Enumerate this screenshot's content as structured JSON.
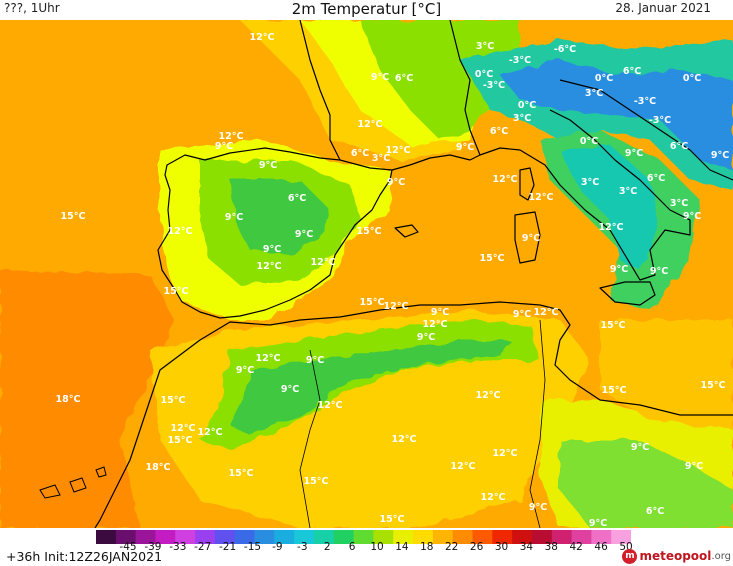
{
  "header": {
    "left": "???, 1Uhr",
    "title": "2m Temperatur [°C]",
    "date": "28. Januar 2021"
  },
  "colors": {
    "sea_warm": "#ff8c00",
    "sea_mild": "#ffaa00",
    "land_mild": "#ffd000",
    "land_cool": "#f0ff00",
    "cold": "#8ce000",
    "very_cold": "#40c840",
    "coast": "#000000"
  },
  "temperature_labels": [
    {
      "text": "12°C",
      "lx": 262,
      "ly": 36
    },
    {
      "text": "9°C",
      "lx": 380,
      "ly": 76
    },
    {
      "text": "6°C",
      "lx": 404,
      "ly": 77
    },
    {
      "text": "3°C",
      "lx": 485,
      "ly": 45
    },
    {
      "text": "-6°C",
      "lx": 565,
      "ly": 48
    },
    {
      "text": "0°C",
      "lx": 484,
      "ly": 73
    },
    {
      "text": "-3°C",
      "lx": 520,
      "ly": 59
    },
    {
      "text": "-3°C",
      "lx": 494,
      "ly": 84
    },
    {
      "text": "0°C",
      "lx": 604,
      "ly": 77
    },
    {
      "text": "6°C",
      "lx": 632,
      "ly": 70
    },
    {
      "text": "0°C",
      "lx": 692,
      "ly": 77
    },
    {
      "text": "3°C",
      "lx": 594,
      "ly": 92
    },
    {
      "text": "-3°C",
      "lx": 645,
      "ly": 100
    },
    {
      "text": "0°C",
      "lx": 527,
      "ly": 104
    },
    {
      "text": "3°C",
      "lx": 522,
      "ly": 117
    },
    {
      "text": "-3°C",
      "lx": 660,
      "ly": 119
    },
    {
      "text": "6°C",
      "lx": 499,
      "ly": 130
    },
    {
      "text": "0°C",
      "lx": 589,
      "ly": 140
    },
    {
      "text": "6°C",
      "lx": 679,
      "ly": 145
    },
    {
      "text": "9°C",
      "lx": 720,
      "ly": 154
    },
    {
      "text": "12°C",
      "lx": 370,
      "ly": 123
    },
    {
      "text": "12°C",
      "lx": 231,
      "ly": 135
    },
    {
      "text": "9°C",
      "lx": 224,
      "ly": 145
    },
    {
      "text": "9°C",
      "lx": 268,
      "ly": 164
    },
    {
      "text": "6°C",
      "lx": 360,
      "ly": 152
    },
    {
      "text": "3°C",
      "lx": 381,
      "ly": 157
    },
    {
      "text": "12°C",
      "lx": 398,
      "ly": 149
    },
    {
      "text": "9°C",
      "lx": 465,
      "ly": 146
    },
    {
      "text": "9°C",
      "lx": 634,
      "ly": 152
    },
    {
      "text": "6°C",
      "lx": 656,
      "ly": 177
    },
    {
      "text": "12°C",
      "lx": 505,
      "ly": 178
    },
    {
      "text": "9°C",
      "lx": 396,
      "ly": 181
    },
    {
      "text": "3°C",
      "lx": 590,
      "ly": 181
    },
    {
      "text": "3°C",
      "lx": 628,
      "ly": 190
    },
    {
      "text": "6°C",
      "lx": 297,
      "ly": 197
    },
    {
      "text": "12°C",
      "lx": 541,
      "ly": 196
    },
    {
      "text": "3°C",
      "lx": 679,
      "ly": 202
    },
    {
      "text": "9°C",
      "lx": 692,
      "ly": 215
    },
    {
      "text": "15°C",
      "lx": 73,
      "ly": 215
    },
    {
      "text": "9°C",
      "lx": 234,
      "ly": 216
    },
    {
      "text": "9°C",
      "lx": 304,
      "ly": 233
    },
    {
      "text": "12°C",
      "lx": 180,
      "ly": 230
    },
    {
      "text": "15°C",
      "lx": 369,
      "ly": 230
    },
    {
      "text": "12°C",
      "lx": 611,
      "ly": 226
    },
    {
      "text": "9°C",
      "lx": 531,
      "ly": 237
    },
    {
      "text": "9°C",
      "lx": 272,
      "ly": 248
    },
    {
      "text": "15°C",
      "lx": 492,
      "ly": 257
    },
    {
      "text": "12°C",
      "lx": 269,
      "ly": 265
    },
    {
      "text": "12°C",
      "lx": 323,
      "ly": 261
    },
    {
      "text": "9°C",
      "lx": 619,
      "ly": 268
    },
    {
      "text": "9°C",
      "lx": 659,
      "ly": 270
    },
    {
      "text": "15°C",
      "lx": 176,
      "ly": 290
    },
    {
      "text": "15°C",
      "lx": 372,
      "ly": 301
    },
    {
      "text": "12°C",
      "lx": 396,
      "ly": 305
    },
    {
      "text": "9°C",
      "lx": 440,
      "ly": 311
    },
    {
      "text": "9°C",
      "lx": 522,
      "ly": 313
    },
    {
      "text": "12°C",
      "lx": 546,
      "ly": 311
    },
    {
      "text": "12°C",
      "lx": 435,
      "ly": 323
    },
    {
      "text": "15°C",
      "lx": 613,
      "ly": 324
    },
    {
      "text": "9°C",
      "lx": 426,
      "ly": 336
    },
    {
      "text": "12°C",
      "lx": 268,
      "ly": 357
    },
    {
      "text": "9°C",
      "lx": 315,
      "ly": 359
    },
    {
      "text": "9°C",
      "lx": 245,
      "ly": 369
    },
    {
      "text": "15°C",
      "lx": 713,
      "ly": 384
    },
    {
      "text": "9°C",
      "lx": 290,
      "ly": 388
    },
    {
      "text": "15°C",
      "lx": 614,
      "ly": 389
    },
    {
      "text": "18°C",
      "lx": 68,
      "ly": 398
    },
    {
      "text": "15°C",
      "lx": 173,
      "ly": 399
    },
    {
      "text": "12°C",
      "lx": 488,
      "ly": 394
    },
    {
      "text": "12°C",
      "lx": 330,
      "ly": 404
    },
    {
      "text": "12°C",
      "lx": 183,
      "ly": 427
    },
    {
      "text": "12°C",
      "lx": 210,
      "ly": 431
    },
    {
      "text": "15°C",
      "lx": 180,
      "ly": 439
    },
    {
      "text": "12°C",
      "lx": 404,
      "ly": 438
    },
    {
      "text": "9°C",
      "lx": 640,
      "ly": 446
    },
    {
      "text": "12°C",
      "lx": 505,
      "ly": 452
    },
    {
      "text": "18°C",
      "lx": 158,
      "ly": 466
    },
    {
      "text": "15°C",
      "lx": 241,
      "ly": 472
    },
    {
      "text": "12°C",
      "lx": 463,
      "ly": 465
    },
    {
      "text": "9°C",
      "lx": 694,
      "ly": 465
    },
    {
      "text": "15°C",
      "lx": 316,
      "ly": 480
    },
    {
      "text": "12°C",
      "lx": 493,
      "ly": 496
    },
    {
      "text": "9°C",
      "lx": 538,
      "ly": 506
    },
    {
      "text": "6°C",
      "lx": 655,
      "ly": 510
    },
    {
      "text": "15°C",
      "lx": 392,
      "ly": 518
    },
    {
      "text": "9°C",
      "lx": 598,
      "ly": 522
    }
  ],
  "legend": {
    "ticks": [
      "-45",
      "-39",
      "-33",
      "-27",
      "-21",
      "-15",
      "-9",
      "-3",
      "2",
      "6",
      "10",
      "14",
      "18",
      "22",
      "26",
      "30",
      "34",
      "38",
      "42",
      "46",
      "50"
    ],
    "colors": [
      "#3b0a3f",
      "#6a0f6e",
      "#9a1599",
      "#c21cc2",
      "#d040e0",
      "#9a40f0",
      "#6050f0",
      "#3a6ae8",
      "#2a8ee0",
      "#1aaee0",
      "#18c8d8",
      "#18d0a8",
      "#20d060",
      "#60dc30",
      "#a8e000",
      "#e8f000",
      "#ffdc00",
      "#ffb400",
      "#ff8c00",
      "#ff5a00",
      "#f02800",
      "#d01010",
      "#b80c30",
      "#d02070",
      "#e040a0",
      "#f070c8",
      "#f8a0e0"
    ],
    "run": "+36h Init:12Z26JAN2021",
    "brand_main": "meteopool",
    "brand_tld": ".org"
  }
}
